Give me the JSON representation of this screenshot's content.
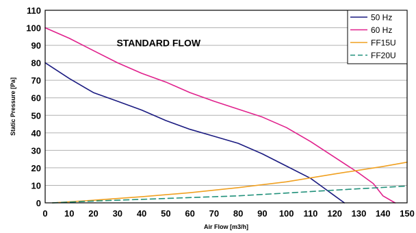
{
  "chart_data": {
    "type": "line",
    "title": "STANDARD FLOW",
    "xlabel": "Air Flow [m3/h]",
    "ylabel": "Static Pressure [Pa]",
    "xlim": [
      0,
      150
    ],
    "ylim": [
      0,
      110
    ],
    "xticks": [
      "0",
      "10",
      "20",
      "30",
      "40",
      "50",
      "60",
      "70",
      "80",
      "90",
      "100",
      "110",
      "120",
      "130",
      "140",
      "150"
    ],
    "yticks": [
      "0",
      "10",
      "20",
      "30",
      "40",
      "50",
      "60",
      "70",
      "80",
      "90",
      "100",
      "110"
    ],
    "grid": true,
    "legend_position": "top-right",
    "series": [
      {
        "name": "50 Hz",
        "color": "#1a1a80",
        "dash": false,
        "points": [
          [
            0,
            80
          ],
          [
            10,
            71
          ],
          [
            20,
            63
          ],
          [
            30,
            58
          ],
          [
            40,
            53
          ],
          [
            50,
            47
          ],
          [
            60,
            42
          ],
          [
            70,
            38
          ],
          [
            80,
            34
          ],
          [
            90,
            28
          ],
          [
            100,
            21
          ],
          [
            110,
            14
          ],
          [
            115,
            9
          ],
          [
            120,
            4
          ],
          [
            124,
            0
          ]
        ]
      },
      {
        "name": "60 Hz",
        "color": "#e0208c",
        "dash": false,
        "points": [
          [
            0,
            100
          ],
          [
            10,
            94
          ],
          [
            20,
            87
          ],
          [
            30,
            80
          ],
          [
            40,
            74
          ],
          [
            50,
            69
          ],
          [
            60,
            63
          ],
          [
            70,
            58
          ],
          [
            80,
            53.5
          ],
          [
            90,
            49
          ],
          [
            100,
            43
          ],
          [
            110,
            35
          ],
          [
            120,
            26
          ],
          [
            130,
            17
          ],
          [
            136,
            11
          ],
          [
            140,
            4
          ],
          [
            145,
            0
          ]
        ]
      },
      {
        "name": "FF15U",
        "color": "#f0a020",
        "dash": false,
        "points": [
          [
            3,
            0
          ],
          [
            20,
            1.5
          ],
          [
            40,
            3.5
          ],
          [
            60,
            5.8
          ],
          [
            80,
            8.7
          ],
          [
            100,
            12
          ],
          [
            120,
            16.5
          ],
          [
            140,
            20.8
          ],
          [
            150,
            23.2
          ]
        ]
      },
      {
        "name": "FF20U",
        "color": "#20907a",
        "dash": true,
        "points": [
          [
            3,
            0
          ],
          [
            20,
            1
          ],
          [
            40,
            2
          ],
          [
            60,
            3
          ],
          [
            80,
            4
          ],
          [
            100,
            5.6
          ],
          [
            120,
            7.3
          ],
          [
            140,
            8.8
          ],
          [
            150,
            9.6
          ]
        ]
      }
    ]
  }
}
